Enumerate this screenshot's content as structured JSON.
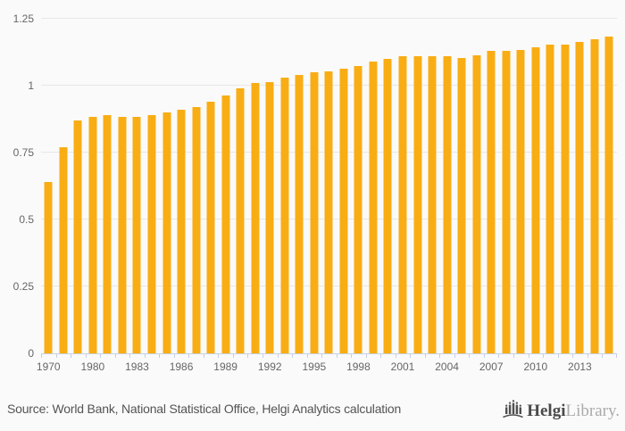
{
  "colors": {
    "background": "#FAFAFA",
    "bar": "#F9AD14",
    "grid": "#E7E7E7",
    "axis": "#C6D0E4",
    "label_text": "#666666",
    "source_text": "#545454",
    "brand_dark": "#4A4A4A",
    "brand_light": "#ABABAB"
  },
  "chart_data": {
    "type": "bar",
    "title": "",
    "xlabel": "",
    "ylabel": "",
    "ylim": [
      0,
      1.25
    ],
    "grid": true,
    "legend": "none",
    "label_every": 3,
    "y_ticks": [
      {
        "value": 0,
        "label": "0"
      },
      {
        "value": 0.25,
        "label": "0.25"
      },
      {
        "value": 0.5,
        "label": "0.5"
      },
      {
        "value": 0.75,
        "label": "0.75"
      },
      {
        "value": 1,
        "label": "1"
      },
      {
        "value": 1.25,
        "label": "1.25"
      }
    ],
    "visible_x_tick_labels": [
      "1970",
      "1980",
      "1983",
      "1986",
      "1989",
      "1992",
      "1995",
      "1998",
      "2001",
      "2004",
      "2007",
      "2010",
      "2013"
    ],
    "categories": [
      "1970",
      "",
      "",
      "1980",
      "1981",
      "1982",
      "1983",
      "1984",
      "1985",
      "1986",
      "1987",
      "1988",
      "1989",
      "1990",
      "1991",
      "1992",
      "1993",
      "1994",
      "1995",
      "1996",
      "1997",
      "1998",
      "1999",
      "2000",
      "2001",
      "2002",
      "2003",
      "2004",
      "2005",
      "2006",
      "2007",
      "2008",
      "2009",
      "2010",
      "2011",
      "2012",
      "2013",
      "2014",
      "2015"
    ],
    "values": [
      0.64,
      0.77,
      0.87,
      0.885,
      0.89,
      0.885,
      0.885,
      0.89,
      0.9,
      0.91,
      0.92,
      0.94,
      0.965,
      0.99,
      1.01,
      1.015,
      1.03,
      1.04,
      1.05,
      1.055,
      1.065,
      1.075,
      1.09,
      1.1,
      1.11,
      1.11,
      1.11,
      1.11,
      1.105,
      1.115,
      1.13,
      1.13,
      1.135,
      1.145,
      1.155,
      1.155,
      1.165,
      1.175,
      1.185
    ]
  },
  "footer": {
    "source_text": "Source: World Bank, National Statistical Office, Helgi Analytics calculation",
    "logo": {
      "icon": "helgi-bridge-logo-icon",
      "brand_primary": "Helgi",
      "brand_secondary": "Library."
    }
  }
}
